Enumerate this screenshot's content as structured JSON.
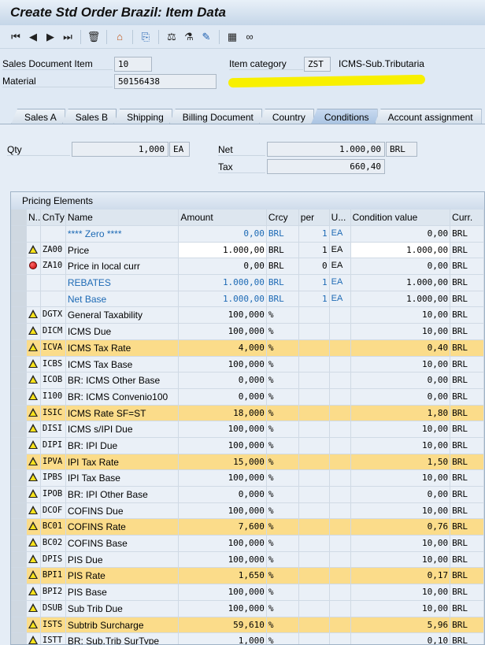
{
  "title": "Create Std Order Brazil: Item Data",
  "toolbar": [
    "first-item-icon",
    "previous-item-icon",
    "next-item-icon",
    "last-item-icon",
    "delete-icon",
    "header-icon",
    "document-flow-icon",
    "pricing-analysis-icon",
    "status-icon",
    "display-change-icon",
    "calculator-icon",
    "glasses-icon"
  ],
  "header": {
    "item_label": "Sales Document Item",
    "item_value": "10",
    "material_label": "Material",
    "material_value": "50156438",
    "itemcat_label": "Item category",
    "itemcat_value": "ZST",
    "itemcat_desc": "ICMS-Sub.Tributaria"
  },
  "tabs": [
    "Sales A",
    "Sales B",
    "Shipping",
    "Billing Document",
    "Country",
    "Conditions",
    "Account assignment"
  ],
  "active_tab": "Conditions",
  "conditions": {
    "qty_label": "Qty",
    "qty_value": "1,000",
    "qty_unit": "EA",
    "net_label": "Net",
    "net_value": "1.000,00",
    "net_curr": "BRL",
    "tax_label": "Tax",
    "tax_value": "660,40"
  },
  "pricing": {
    "title": "Pricing Elements",
    "columns": [
      "N..",
      "CnTy",
      "Name",
      "Amount",
      "Crcy",
      "per",
      "U...",
      "Condition value",
      "Curr."
    ],
    "highlight_color": "#fbdc8a",
    "rows": [
      {
        "s": "",
        "t": "",
        "n": "**** Zero ****",
        "a": "0,00",
        "c": "BRL",
        "p": "1",
        "u": "EA",
        "v": "0,00",
        "cu": "BRL",
        "blue": true
      },
      {
        "s": "warning",
        "t": "ZA00",
        "n": "Price",
        "a": "1.000,00",
        "c": "BRL",
        "p": "1",
        "u": "EA",
        "v": "1.000,00",
        "cu": "BRL",
        "white": true
      },
      {
        "s": "error",
        "t": "ZA10",
        "n": "Price in local curr",
        "a": "0,00",
        "c": "BRL",
        "p": "0",
        "u": "EA",
        "v": "0,00",
        "cu": "BRL"
      },
      {
        "s": "",
        "t": "",
        "n": "REBATES",
        "a": "1.000,00",
        "c": "BRL",
        "p": "1",
        "u": "EA",
        "v": "1.000,00",
        "cu": "BRL",
        "blue": true
      },
      {
        "s": "",
        "t": "",
        "n": "Net Base",
        "a": "1.000,00",
        "c": "BRL",
        "p": "1",
        "u": "EA",
        "v": "1.000,00",
        "cu": "BRL",
        "blue": true
      },
      {
        "s": "warning",
        "t": "DGTX",
        "n": "General Taxability",
        "a": "100,000",
        "c": "%",
        "v": "10,00",
        "cu": "BRL"
      },
      {
        "s": "warning",
        "t": "DICM",
        "n": "ICMS Due",
        "a": "100,000",
        "c": "%",
        "v": "10,00",
        "cu": "BRL"
      },
      {
        "s": "warning",
        "t": "ICVA",
        "n": "ICMS Tax Rate",
        "a": "4,000",
        "c": "%",
        "v": "0,40",
        "cu": "BRL",
        "hl": true
      },
      {
        "s": "warning",
        "t": "ICBS",
        "n": "ICMS Tax Base",
        "a": "100,000",
        "c": "%",
        "v": "10,00",
        "cu": "BRL"
      },
      {
        "s": "warning",
        "t": "ICOB",
        "n": "BR: ICMS Other Base",
        "a": "0,000",
        "c": "%",
        "v": "0,00",
        "cu": "BRL"
      },
      {
        "s": "warning",
        "t": "I100",
        "n": "BR: ICMS Convenio100",
        "a": "0,000",
        "c": "%",
        "v": "0,00",
        "cu": "BRL"
      },
      {
        "s": "warning",
        "t": "ISIC",
        "n": "ICMS Rate SF=ST",
        "a": "18,000",
        "c": "%",
        "v": "1,80",
        "cu": "BRL",
        "hl": true
      },
      {
        "s": "warning",
        "t": "DISI",
        "n": "ICMS s/IPI Due",
        "a": "100,000",
        "c": "%",
        "v": "10,00",
        "cu": "BRL"
      },
      {
        "s": "warning",
        "t": "DIPI",
        "n": "BR: IPI Due",
        "a": "100,000",
        "c": "%",
        "v": "10,00",
        "cu": "BRL"
      },
      {
        "s": "warning",
        "t": "IPVA",
        "n": "IPI Tax Rate",
        "a": "15,000",
        "c": "%",
        "v": "1,50",
        "cu": "BRL",
        "hl": true
      },
      {
        "s": "warning",
        "t": "IPBS",
        "n": "IPI Tax Base",
        "a": "100,000",
        "c": "%",
        "v": "10,00",
        "cu": "BRL"
      },
      {
        "s": "warning",
        "t": "IPOB",
        "n": "BR: IPI Other Base",
        "a": "0,000",
        "c": "%",
        "v": "0,00",
        "cu": "BRL"
      },
      {
        "s": "warning",
        "t": "DCOF",
        "n": "COFINS Due",
        "a": "100,000",
        "c": "%",
        "v": "10,00",
        "cu": "BRL"
      },
      {
        "s": "warning",
        "t": "BC01",
        "n": "COFINS Rate",
        "a": "7,600",
        "c": "%",
        "v": "0,76",
        "cu": "BRL",
        "hl": true
      },
      {
        "s": "warning",
        "t": "BC02",
        "n": "COFINS Base",
        "a": "100,000",
        "c": "%",
        "v": "10,00",
        "cu": "BRL"
      },
      {
        "s": "warning",
        "t": "DPIS",
        "n": "PIS Due",
        "a": "100,000",
        "c": "%",
        "v": "10,00",
        "cu": "BRL"
      },
      {
        "s": "warning",
        "t": "BPI1",
        "n": "PIS Rate",
        "a": "1,650",
        "c": "%",
        "v": "0,17",
        "cu": "BRL",
        "hl": true
      },
      {
        "s": "warning",
        "t": "BPI2",
        "n": "PIS Base",
        "a": "100,000",
        "c": "%",
        "v": "10,00",
        "cu": "BRL"
      },
      {
        "s": "warning",
        "t": "DSUB",
        "n": "Sub Trib Due",
        "a": "100,000",
        "c": "%",
        "v": "10,00",
        "cu": "BRL"
      },
      {
        "s": "warning",
        "t": "ISTS",
        "n": "Subtrib Surcharge",
        "a": "59,610",
        "c": "%",
        "v": "5,96",
        "cu": "BRL",
        "hl": true
      },
      {
        "s": "warning",
        "t": "ISTT",
        "n": "BR: Sub.Trib SurType",
        "a": "1,000",
        "c": "%",
        "v": "0,10",
        "cu": "BRL"
      }
    ]
  }
}
